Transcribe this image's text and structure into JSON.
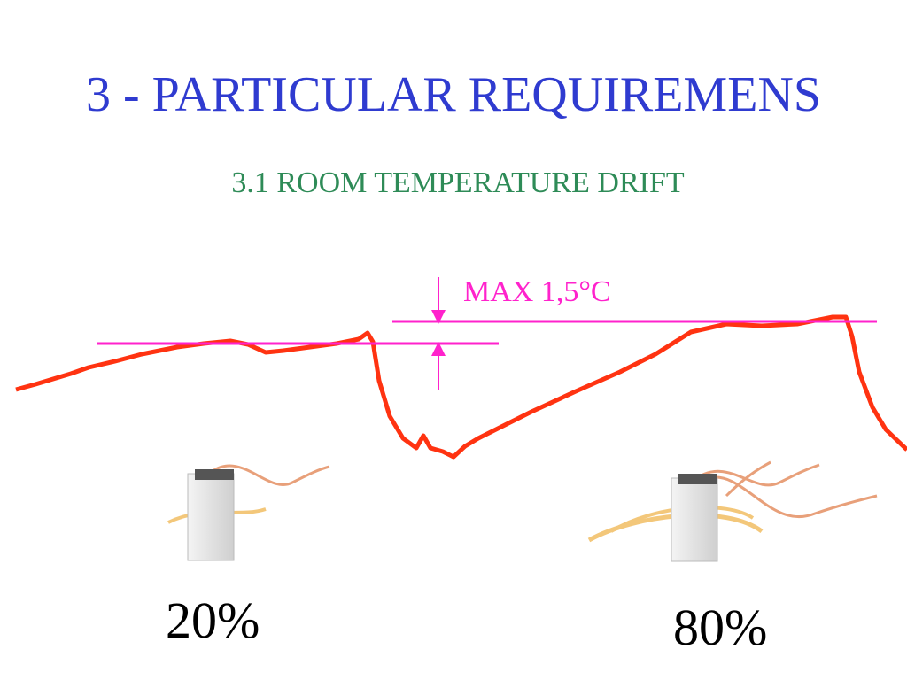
{
  "header": {
    "title": "3 - PARTICULAR REQUIREMENS",
    "subtitle": "3.1 ROOM TEMPERATURE DRIFT"
  },
  "annotation": "MAX 1,5°C",
  "labels": [
    "20%",
    "80%"
  ]
}
